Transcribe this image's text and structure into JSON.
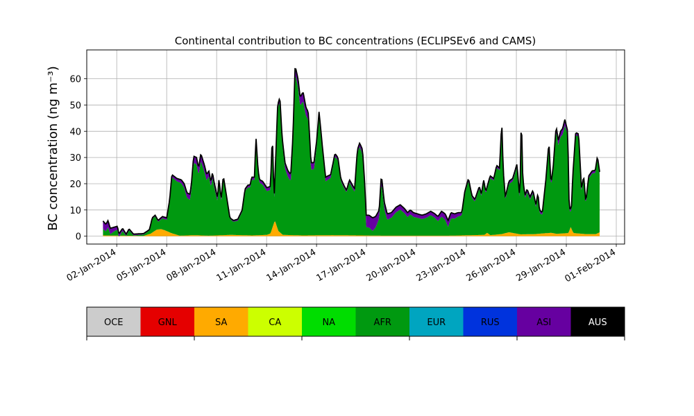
{
  "chart_data": {
    "type": "area",
    "title": "Continental contribution to BC concentrations (ECLIPSEv6 and CAMS)",
    "ylabel": "BC concentration (ng m⁻³)",
    "xlabel": "",
    "ylim": [
      -3,
      71
    ],
    "xlim_days": [
      -0.8,
      31.5
    ],
    "grid": true,
    "stacked": true,
    "x_start": "2014-01-01",
    "x_step": "6h",
    "yticks": [
      0,
      10,
      20,
      30,
      40,
      50,
      60
    ],
    "xtick_labels": [
      "02-Jan-2014",
      "05-Jan-2014",
      "08-Jan-2014",
      "11-Jan-2014",
      "14-Jan-2014",
      "17-Jan-2014",
      "20-Jan-2014",
      "23-Jan-2014",
      "26-Jan-2014",
      "29-Jan-2014",
      "01-Feb-2014"
    ],
    "total_keypoints": [
      [
        0.2,
        5.8
      ],
      [
        0.4,
        4.5
      ],
      [
        0.55,
        6
      ],
      [
        0.7,
        3
      ],
      [
        1.2,
        3.8
      ],
      [
        1.3,
        0.8
      ],
      [
        1.55,
        3
      ],
      [
        1.8,
        0.8
      ],
      [
        2,
        2.8
      ],
      [
        2.3,
        0.8
      ],
      [
        3.0,
        1
      ],
      [
        3.4,
        2.5
      ],
      [
        3.6,
        7
      ],
      [
        3.8,
        8
      ],
      [
        4.0,
        6
      ],
      [
        4.3,
        7.5
      ],
      [
        4.6,
        7
      ],
      [
        4.8,
        14
      ],
      [
        4.95,
        23.5
      ],
      [
        5.3,
        22
      ],
      [
        5.6,
        21.5
      ],
      [
        5.8,
        20
      ],
      [
        6.0,
        16.5
      ],
      [
        6.2,
        16
      ],
      [
        6.3,
        20
      ],
      [
        6.45,
        30.5
      ],
      [
        6.65,
        30
      ],
      [
        6.8,
        26
      ],
      [
        6.95,
        31.5
      ],
      [
        7.2,
        27
      ],
      [
        7.35,
        23.5
      ],
      [
        7.5,
        25
      ],
      [
        7.65,
        20.5
      ],
      [
        7.75,
        24.5
      ],
      [
        7.85,
        21
      ],
      [
        8.1,
        14.5
      ],
      [
        8.2,
        22
      ],
      [
        8.35,
        14
      ],
      [
        8.5,
        23
      ],
      [
        8.7,
        16
      ],
      [
        8.95,
        7
      ],
      [
        9.2,
        6
      ],
      [
        9.5,
        6.5
      ],
      [
        9.8,
        10
      ],
      [
        10.0,
        18
      ],
      [
        10.2,
        19.5
      ],
      [
        10.35,
        19.5
      ],
      [
        10.45,
        22.5
      ],
      [
        10.65,
        22.5
      ],
      [
        10.75,
        38
      ],
      [
        10.9,
        25
      ],
      [
        11.0,
        21.5
      ],
      [
        11.2,
        21
      ],
      [
        11.5,
        18.5
      ],
      [
        11.75,
        19
      ],
      [
        11.88,
        39
      ],
      [
        12.0,
        14
      ],
      [
        12.25,
        50
      ],
      [
        12.4,
        53
      ],
      [
        12.55,
        38
      ],
      [
        12.75,
        28
      ],
      [
        12.95,
        25
      ],
      [
        13.15,
        23.5
      ],
      [
        13.3,
        38
      ],
      [
        13.45,
        65
      ],
      [
        13.65,
        60
      ],
      [
        13.8,
        53
      ],
      [
        14.0,
        55
      ],
      [
        14.2,
        49
      ],
      [
        14.35,
        47.5
      ],
      [
        14.55,
        28
      ],
      [
        14.75,
        28
      ],
      [
        14.95,
        37
      ],
      [
        15.1,
        47.5
      ],
      [
        15.3,
        36
      ],
      [
        15.55,
        22.5
      ],
      [
        15.9,
        23.5
      ],
      [
        16.2,
        31.5
      ],
      [
        16.4,
        30
      ],
      [
        16.6,
        22
      ],
      [
        16.8,
        19.5
      ],
      [
        17.0,
        17.5
      ],
      [
        17.2,
        21.5
      ],
      [
        17.55,
        18
      ],
      [
        17.75,
        33
      ],
      [
        17.9,
        35.5
      ],
      [
        18.1,
        33
      ],
      [
        18.25,
        20
      ],
      [
        18.35,
        8
      ],
      [
        18.55,
        8
      ],
      [
        18.8,
        7
      ],
      [
        19.0,
        7.5
      ],
      [
        19.25,
        10
      ],
      [
        19.4,
        23.5
      ],
      [
        19.6,
        13
      ],
      [
        19.8,
        8.5
      ],
      [
        20.1,
        9
      ],
      [
        20.4,
        11
      ],
      [
        20.7,
        12
      ],
      [
        21.0,
        10.5
      ],
      [
        21.2,
        9
      ],
      [
        21.4,
        10
      ],
      [
        21.6,
        9
      ],
      [
        21.9,
        8.5
      ],
      [
        22.2,
        8
      ],
      [
        22.5,
        8.5
      ],
      [
        22.8,
        9.5
      ],
      [
        23.1,
        8.5
      ],
      [
        23.3,
        7.5
      ],
      [
        23.55,
        9.5
      ],
      [
        23.8,
        8.5
      ],
      [
        24.0,
        6
      ],
      [
        24.2,
        9
      ],
      [
        24.45,
        8.5
      ],
      [
        24.7,
        9
      ],
      [
        24.95,
        9
      ],
      [
        25.15,
        17
      ],
      [
        25.4,
        22
      ],
      [
        25.65,
        15.5
      ],
      [
        25.85,
        14
      ],
      [
        26.15,
        19
      ],
      [
        26.3,
        16
      ],
      [
        26.45,
        21.5
      ],
      [
        26.6,
        17
      ],
      [
        26.9,
        23
      ],
      [
        27.15,
        22
      ],
      [
        27.35,
        27
      ],
      [
        27.55,
        26
      ],
      [
        27.7,
        44
      ],
      [
        27.8,
        25
      ],
      [
        27.95,
        15
      ],
      [
        28.2,
        21
      ],
      [
        28.45,
        22
      ],
      [
        28.75,
        27.5
      ],
      [
        28.95,
        14
      ],
      [
        29.05,
        47
      ],
      [
        29.15,
        22
      ],
      [
        29.3,
        15.5
      ],
      [
        29.45,
        18
      ],
      [
        29.65,
        15
      ],
      [
        29.85,
        17.5
      ],
      [
        30.05,
        12
      ],
      [
        30.2,
        16.5
      ],
      [
        30.3,
        10
      ],
      [
        30.5,
        9
      ],
      [
        30.75,
        22
      ],
      [
        30.95,
        36
      ],
      [
        31.1,
        20
      ],
      [
        31.25,
        26.5
      ],
      [
        31.45,
        42
      ],
      [
        31.6,
        36.5
      ],
      [
        31.75,
        40
      ],
      [
        31.9,
        41
      ],
      [
        32.05,
        44.5
      ],
      [
        32.25,
        40
      ],
      [
        32.35,
        10.5
      ],
      [
        32.5,
        10.5
      ],
      [
        32.6,
        23
      ],
      [
        32.8,
        39.5
      ],
      [
        33.0,
        39
      ],
      [
        33.2,
        18
      ],
      [
        33.35,
        23
      ],
      [
        33.5,
        13
      ],
      [
        33.7,
        23
      ],
      [
        33.95,
        25
      ],
      [
        34.15,
        25
      ],
      [
        34.3,
        30.5
      ],
      [
        34.45,
        24.5
      ]
    ],
    "asi_keypoints": [
      [
        0.2,
        3
      ],
      [
        0.6,
        2.5
      ],
      [
        1,
        1.5
      ],
      [
        2,
        0.5
      ],
      [
        3.5,
        0.3
      ],
      [
        4.95,
        1
      ],
      [
        5.5,
        1.2
      ],
      [
        6.45,
        2.5
      ],
      [
        7,
        2.8
      ],
      [
        8,
        1.5
      ],
      [
        9,
        0.4
      ],
      [
        10,
        0.8
      ],
      [
        11,
        1.2
      ],
      [
        12.3,
        1.5
      ],
      [
        13.45,
        3
      ],
      [
        14,
        3.5
      ],
      [
        15.1,
        2
      ],
      [
        16,
        1.2
      ],
      [
        17,
        0.8
      ],
      [
        18,
        1.5
      ],
      [
        18.35,
        4.5
      ],
      [
        18.8,
        5
      ],
      [
        19.3,
        3
      ],
      [
        20,
        2
      ],
      [
        21,
        1.8
      ],
      [
        22,
        1.5
      ],
      [
        23,
        1.5
      ],
      [
        24,
        2.5
      ],
      [
        25,
        1
      ],
      [
        26,
        0.8
      ],
      [
        27,
        0.8
      ],
      [
        28,
        1
      ],
      [
        29,
        1.2
      ],
      [
        30,
        1
      ],
      [
        31,
        1
      ],
      [
        32,
        2.5
      ],
      [
        32.4,
        1
      ],
      [
        33,
        1
      ],
      [
        34.45,
        1
      ]
    ],
    "sa_keypoints": [
      [
        0.2,
        0.3
      ],
      [
        3.0,
        0.1
      ],
      [
        3.5,
        1
      ],
      [
        3.9,
        2.5
      ],
      [
        4.2,
        2.7
      ],
      [
        4.5,
        2.2
      ],
      [
        4.9,
        1.2
      ],
      [
        5.5,
        0.2
      ],
      [
        6.5,
        0.4
      ],
      [
        7.5,
        0.2
      ],
      [
        9,
        0.5
      ],
      [
        10.5,
        0.3
      ],
      [
        11.5,
        0.5
      ],
      [
        11.75,
        1
      ],
      [
        12.05,
        6
      ],
      [
        12.3,
        2
      ],
      [
        12.6,
        0.5
      ],
      [
        14,
        0.3
      ],
      [
        16,
        0.4
      ],
      [
        18,
        0.3
      ],
      [
        19.5,
        0.2
      ],
      [
        21,
        0.2
      ],
      [
        24,
        0.2
      ],
      [
        26.5,
        0.5
      ],
      [
        26.7,
        1.3
      ],
      [
        26.9,
        0.4
      ],
      [
        27.7,
        0.8
      ],
      [
        28.2,
        1.5
      ],
      [
        29,
        0.7
      ],
      [
        30,
        0.8
      ],
      [
        31.1,
        1.3
      ],
      [
        31.5,
        0.9
      ],
      [
        32.3,
        1.2
      ],
      [
        32.45,
        3.5
      ],
      [
        32.65,
        1.2
      ],
      [
        33.5,
        0.8
      ],
      [
        34.2,
        0.8
      ],
      [
        34.45,
        1.5
      ]
    ]
  },
  "legend": {
    "items": [
      {
        "label": "OCE",
        "color": "#cccccc",
        "text_color": "#000000"
      },
      {
        "label": "GNL",
        "color": "#e50000",
        "text_color": "#000000"
      },
      {
        "label": "SA",
        "color": "#ffaa00",
        "text_color": "#000000"
      },
      {
        "label": "CA",
        "color": "#ccff00",
        "text_color": "#000000"
      },
      {
        "label": "NA",
        "color": "#00dd00",
        "text_color": "#000000"
      },
      {
        "label": "AFR",
        "color": "#009910",
        "text_color": "#000000"
      },
      {
        "label": "EUR",
        "color": "#00a5c0",
        "text_color": "#000000"
      },
      {
        "label": "RUS",
        "color": "#0033dd",
        "text_color": "#000000"
      },
      {
        "label": "ASI",
        "color": "#6600a0",
        "text_color": "#000000"
      },
      {
        "label": "AUS",
        "color": "#000000",
        "text_color": "#ffffff"
      }
    ]
  }
}
